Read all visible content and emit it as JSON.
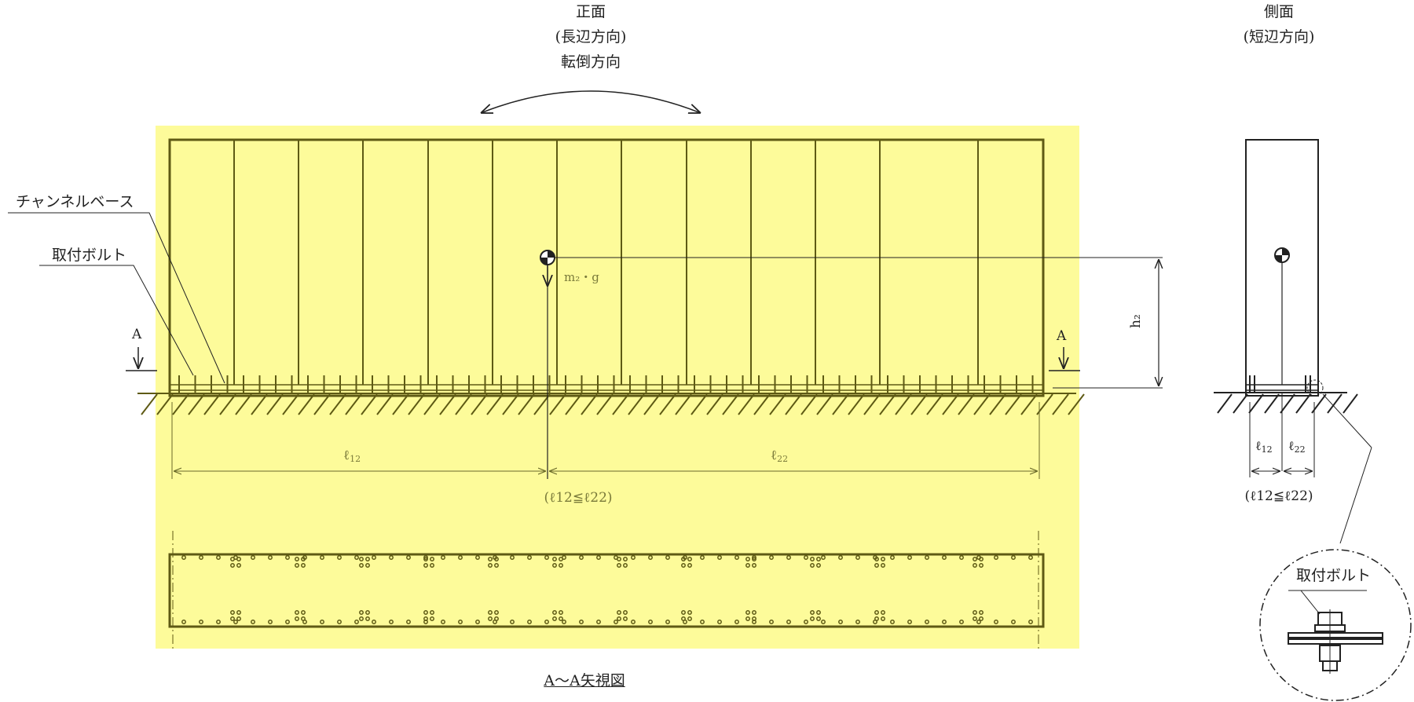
{
  "front_view": {
    "title": "正面",
    "subtitle": "(長辺方向)",
    "direction": "転倒方向"
  },
  "side_view": {
    "title": "側面",
    "subtitle": "(短辺方向)"
  },
  "labels": {
    "channel_base": "チャンネルベース",
    "mounting_bolt": "取付ボルト",
    "section_mark": "A",
    "weight_label": "m₂・g",
    "height_label": "h₂",
    "section_view_title": "A～A矢視図",
    "detail_bolt": "取付ボルト"
  },
  "dimensions": {
    "front_l1": "ℓ",
    "front_l1_sub": "12",
    "front_l2": "ℓ",
    "front_l2_sub": "22",
    "front_condition": "(ℓ12≦ℓ22)",
    "side_l1": "ℓ",
    "side_l1_sub": "12",
    "side_l2": "ℓ",
    "side_l2_sub": "22",
    "side_condition": "(ℓ12≦ℓ22)"
  },
  "colors": {
    "highlight": "#fdfb9a",
    "line": "#5e5a14",
    "black": "#222222",
    "dim": "#8a8a3a"
  }
}
